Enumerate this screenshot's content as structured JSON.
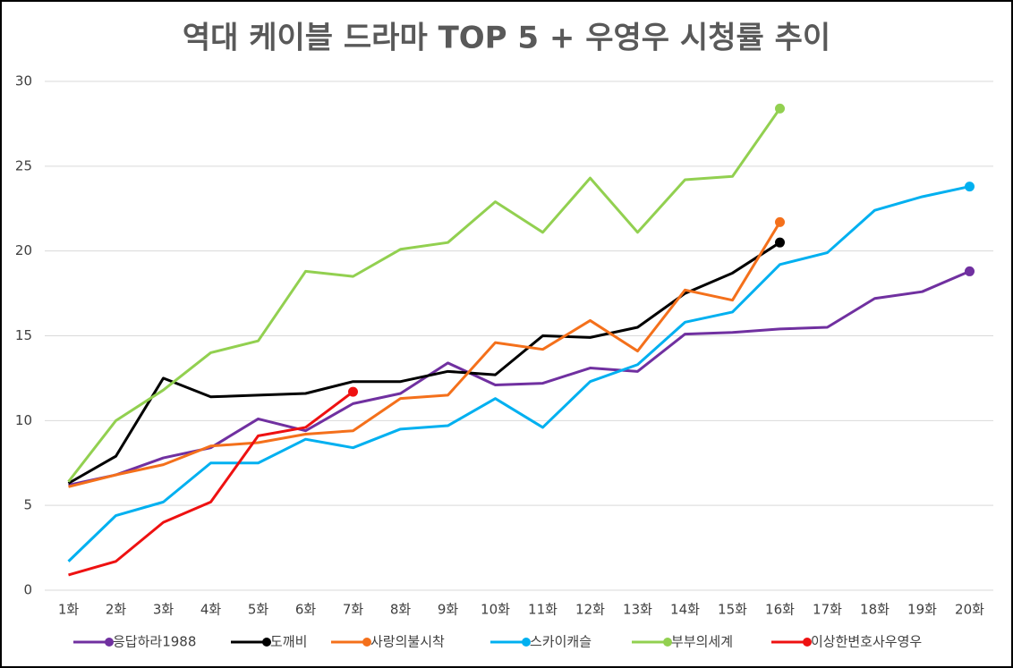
{
  "chart_data": {
    "type": "line",
    "title": "역대 케이블 드라마 TOP 5 + 우영우 시청률 추이",
    "categories": [
      "1화",
      "2화",
      "3화",
      "4화",
      "5화",
      "6화",
      "7화",
      "8화",
      "9화",
      "10화",
      "11화",
      "12화",
      "13화",
      "14화",
      "15화",
      "16화",
      "17화",
      "18화",
      "19화",
      "20화"
    ],
    "ylim": [
      0,
      30
    ],
    "yticks": [
      0,
      5,
      10,
      15,
      20,
      25,
      30
    ],
    "grid": true,
    "series": [
      {
        "name": "응답하라1988",
        "color": "#7030a0",
        "values": [
          6.2,
          6.8,
          7.8,
          8.4,
          10.1,
          9.4,
          11.0,
          11.6,
          13.4,
          12.1,
          12.2,
          13.1,
          12.9,
          15.1,
          15.2,
          15.4,
          15.5,
          17.2,
          17.6,
          18.8
        ]
      },
      {
        "name": "도깨비",
        "color": "#000000",
        "values": [
          6.3,
          7.9,
          12.5,
          11.4,
          11.5,
          11.6,
          12.3,
          12.3,
          12.9,
          12.7,
          15.0,
          14.9,
          15.5,
          17.5,
          18.7,
          20.5,
          null,
          null,
          null,
          null
        ]
      },
      {
        "name": "사랑의불시착",
        "color": "#f4701b",
        "values": [
          6.1,
          6.8,
          7.4,
          8.5,
          8.7,
          9.2,
          9.4,
          11.3,
          11.5,
          14.6,
          14.2,
          15.9,
          14.1,
          17.7,
          17.1,
          21.7,
          null,
          null,
          null,
          null
        ]
      },
      {
        "name": "스카이캐슬",
        "color": "#00b0f0",
        "values": [
          1.7,
          4.4,
          5.2,
          7.5,
          7.5,
          8.9,
          8.4,
          9.5,
          9.7,
          11.3,
          9.6,
          12.3,
          13.3,
          15.8,
          16.4,
          19.2,
          19.9,
          22.4,
          23.2,
          23.8
        ]
      },
      {
        "name": "부부의세계",
        "color": "#92d050",
        "values": [
          6.4,
          10.0,
          11.8,
          14.0,
          14.7,
          18.8,
          18.5,
          20.1,
          20.5,
          22.9,
          21.1,
          24.3,
          21.1,
          24.2,
          24.4,
          28.4,
          null,
          null,
          null,
          null
        ]
      },
      {
        "name": "이상한변호사우영우",
        "color": "#ee1111",
        "values": [
          0.9,
          1.7,
          4.0,
          5.2,
          9.1,
          9.6,
          11.7,
          null,
          null,
          null,
          null,
          null,
          null,
          null,
          null,
          null,
          null,
          null,
          null,
          null
        ]
      }
    ]
  }
}
